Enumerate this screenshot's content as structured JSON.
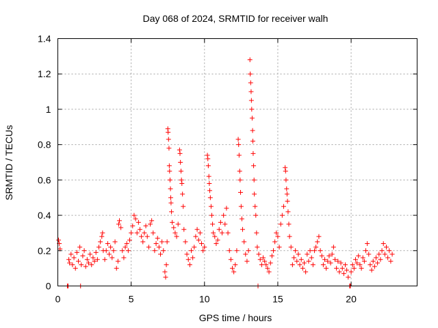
{
  "chart_data": {
    "type": "scatter",
    "title": "Day 068 of 2024, SRMTID for receiver walh",
    "xlabel": "GPS time / hours",
    "ylabel": "SRMTID / TECUs",
    "xlim": [
      0,
      24.5
    ],
    "ylim": [
      0,
      1.4
    ],
    "x_ticks": [
      0,
      5,
      10,
      15,
      20
    ],
    "x_tick_labels": [
      "0",
      "5",
      "10",
      "15",
      "20"
    ],
    "y_ticks": [
      0,
      0.2,
      0.4,
      0.6,
      0.8,
      1.0,
      1.2,
      1.4
    ],
    "y_tick_labels": [
      "0",
      "0.2",
      "0.4",
      "0.6",
      "0.8",
      "1",
      "1.2",
      "1.4"
    ],
    "grid": true,
    "marker": "+",
    "series_color": "#ff0000",
    "series": [
      {
        "name": "SRMTID",
        "points": [
          [
            0.05,
            0.26
          ],
          [
            0.1,
            0.24
          ],
          [
            0.15,
            0.21
          ],
          [
            0.65,
            0.0
          ],
          [
            0.7,
            0.0
          ],
          [
            0.75,
            0.15
          ],
          [
            0.8,
            0.13
          ],
          [
            0.9,
            0.18
          ],
          [
            1.0,
            0.12
          ],
          [
            1.1,
            0.16
          ],
          [
            1.2,
            0.1
          ],
          [
            1.3,
            0.19
          ],
          [
            1.4,
            0.14
          ],
          [
            1.5,
            0.22
          ],
          [
            1.55,
            0.0
          ],
          [
            1.6,
            0.12
          ],
          [
            1.7,
            0.17
          ],
          [
            1.8,
            0.2
          ],
          [
            1.9,
            0.11
          ],
          [
            2.0,
            0.15
          ],
          [
            2.1,
            0.13
          ],
          [
            2.2,
            0.18
          ],
          [
            2.3,
            0.12
          ],
          [
            2.4,
            0.16
          ],
          [
            2.5,
            0.14
          ],
          [
            2.6,
            0.19
          ],
          [
            2.7,
            0.15
          ],
          [
            2.8,
            0.22
          ],
          [
            2.9,
            0.25
          ],
          [
            3.0,
            0.28
          ],
          [
            3.05,
            0.3
          ],
          [
            3.1,
            0.2
          ],
          [
            3.2,
            0.15
          ],
          [
            3.3,
            0.2
          ],
          [
            3.4,
            0.24
          ],
          [
            3.5,
            0.18
          ],
          [
            3.6,
            0.22
          ],
          [
            3.7,
            0.16
          ],
          [
            3.8,
            0.2
          ],
          [
            3.9,
            0.25
          ],
          [
            4.0,
            0.1
          ],
          [
            4.1,
            0.14
          ],
          [
            4.15,
            0.35
          ],
          [
            4.2,
            0.37
          ],
          [
            4.3,
            0.33
          ],
          [
            4.4,
            0.2
          ],
          [
            4.5,
            0.16
          ],
          [
            4.6,
            0.22
          ],
          [
            4.7,
            0.24
          ],
          [
            4.8,
            0.2
          ],
          [
            4.9,
            0.26
          ],
          [
            5.0,
            0.3
          ],
          [
            5.1,
            0.34
          ],
          [
            5.2,
            0.4
          ],
          [
            5.3,
            0.38
          ],
          [
            5.4,
            0.3
          ],
          [
            5.5,
            0.36
          ],
          [
            5.6,
            0.32
          ],
          [
            5.7,
            0.28
          ],
          [
            5.8,
            0.25
          ],
          [
            5.9,
            0.3
          ],
          [
            6.0,
            0.34
          ],
          [
            6.1,
            0.28
          ],
          [
            6.2,
            0.22
          ],
          [
            6.3,
            0.35
          ],
          [
            6.4,
            0.37
          ],
          [
            6.5,
            0.3
          ],
          [
            6.6,
            0.2
          ],
          [
            6.7,
            0.24
          ],
          [
            6.8,
            0.27
          ],
          [
            6.9,
            0.22
          ],
          [
            7.0,
            0.18
          ],
          [
            7.1,
            0.25
          ],
          [
            7.2,
            0.2
          ],
          [
            7.3,
            0.08
          ],
          [
            7.35,
            0.05
          ],
          [
            7.4,
            0.12
          ],
          [
            7.45,
            0.25
          ],
          [
            7.5,
            0.89
          ],
          [
            7.52,
            0.87
          ],
          [
            7.55,
            0.83
          ],
          [
            7.58,
            0.78
          ],
          [
            7.6,
            0.68
          ],
          [
            7.62,
            0.65
          ],
          [
            7.65,
            0.6
          ],
          [
            7.68,
            0.55
          ],
          [
            7.7,
            0.5
          ],
          [
            7.72,
            0.47
          ],
          [
            7.75,
            0.42
          ],
          [
            7.8,
            0.36
          ],
          [
            7.9,
            0.33
          ],
          [
            8.0,
            0.3
          ],
          [
            8.1,
            0.28
          ],
          [
            8.2,
            0.35
          ],
          [
            8.3,
            0.77
          ],
          [
            8.33,
            0.75
          ],
          [
            8.36,
            0.7
          ],
          [
            8.4,
            0.65
          ],
          [
            8.43,
            0.6
          ],
          [
            8.46,
            0.58
          ],
          [
            8.5,
            0.52
          ],
          [
            8.55,
            0.45
          ],
          [
            8.6,
            0.32
          ],
          [
            8.7,
            0.25
          ],
          [
            8.8,
            0.18
          ],
          [
            8.9,
            0.15
          ],
          [
            9.0,
            0.12
          ],
          [
            9.1,
            0.2
          ],
          [
            9.2,
            0.16
          ],
          [
            9.3,
            0.22
          ],
          [
            9.4,
            0.28
          ],
          [
            9.5,
            0.32
          ],
          [
            9.6,
            0.26
          ],
          [
            9.7,
            0.3
          ],
          [
            9.8,
            0.24
          ],
          [
            9.9,
            0.2
          ],
          [
            10.0,
            0.22
          ],
          [
            10.2,
            0.74
          ],
          [
            10.23,
            0.72
          ],
          [
            10.26,
            0.68
          ],
          [
            10.3,
            0.62
          ],
          [
            10.33,
            0.58
          ],
          [
            10.36,
            0.54
          ],
          [
            10.4,
            0.5
          ],
          [
            10.45,
            0.45
          ],
          [
            10.5,
            0.4
          ],
          [
            10.55,
            0.35
          ],
          [
            10.6,
            0.3
          ],
          [
            10.7,
            0.28
          ],
          [
            10.8,
            0.24
          ],
          [
            10.9,
            0.26
          ],
          [
            11.0,
            0.32
          ],
          [
            11.1,
            0.36
          ],
          [
            11.2,
            0.3
          ],
          [
            11.3,
            0.4
          ],
          [
            11.4,
            0.35
          ],
          [
            11.5,
            0.44
          ],
          [
            11.6,
            0.3
          ],
          [
            11.7,
            0.2
          ],
          [
            11.8,
            0.15
          ],
          [
            11.9,
            0.1
          ],
          [
            12.0,
            0.08
          ],
          [
            12.1,
            0.12
          ],
          [
            12.2,
            0.2
          ],
          [
            12.3,
            0.83
          ],
          [
            12.33,
            0.8
          ],
          [
            12.36,
            0.74
          ],
          [
            12.4,
            0.65
          ],
          [
            12.43,
            0.6
          ],
          [
            12.46,
            0.53
          ],
          [
            12.5,
            0.45
          ],
          [
            12.55,
            0.38
          ],
          [
            12.6,
            0.32
          ],
          [
            12.7,
            0.25
          ],
          [
            12.8,
            0.18
          ],
          [
            12.9,
            0.14
          ],
          [
            13.0,
            0.2
          ],
          [
            13.1,
            1.28
          ],
          [
            13.12,
            1.2
          ],
          [
            13.15,
            1.15
          ],
          [
            13.18,
            1.1
          ],
          [
            13.2,
            1.05
          ],
          [
            13.22,
            1.0
          ],
          [
            13.25,
            0.95
          ],
          [
            13.28,
            0.88
          ],
          [
            13.3,
            0.82
          ],
          [
            13.32,
            0.75
          ],
          [
            13.35,
            0.68
          ],
          [
            13.38,
            0.6
          ],
          [
            13.4,
            0.52
          ],
          [
            13.45,
            0.45
          ],
          [
            13.5,
            0.4
          ],
          [
            13.55,
            0.3
          ],
          [
            13.6,
            0.22
          ],
          [
            13.65,
            0.0
          ],
          [
            13.7,
            0.18
          ],
          [
            13.8,
            0.15
          ],
          [
            13.9,
            0.12
          ],
          [
            14.0,
            0.16
          ],
          [
            14.1,
            0.14
          ],
          [
            14.2,
            0.12
          ],
          [
            14.3,
            0.1
          ],
          [
            14.4,
            0.08
          ],
          [
            14.5,
            0.13
          ],
          [
            14.6,
            0.17
          ],
          [
            14.7,
            0.2
          ],
          [
            14.8,
            0.25
          ],
          [
            14.9,
            0.3
          ],
          [
            15.0,
            0.28
          ],
          [
            15.1,
            0.22
          ],
          [
            15.2,
            0.35
          ],
          [
            15.3,
            0.4
          ],
          [
            15.4,
            0.45
          ],
          [
            15.5,
            0.67
          ],
          [
            15.53,
            0.65
          ],
          [
            15.56,
            0.6
          ],
          [
            15.6,
            0.55
          ],
          [
            15.63,
            0.52
          ],
          [
            15.66,
            0.48
          ],
          [
            15.7,
            0.42
          ],
          [
            15.75,
            0.35
          ],
          [
            15.8,
            0.28
          ],
          [
            15.9,
            0.22
          ],
          [
            16.0,
            0.12
          ],
          [
            16.1,
            0.16
          ],
          [
            16.2,
            0.2
          ],
          [
            16.3,
            0.14
          ],
          [
            16.4,
            0.18
          ],
          [
            16.5,
            0.12
          ],
          [
            16.6,
            0.15
          ],
          [
            16.7,
            0.1
          ],
          [
            16.8,
            0.13
          ],
          [
            16.9,
            0.08
          ],
          [
            17.0,
            0.18
          ],
          [
            17.1,
            0.14
          ],
          [
            17.2,
            0.2
          ],
          [
            17.3,
            0.16
          ],
          [
            17.4,
            0.12
          ],
          [
            17.5,
            0.2
          ],
          [
            17.6,
            0.22
          ],
          [
            17.7,
            0.25
          ],
          [
            17.8,
            0.28
          ],
          [
            17.9,
            0.2
          ],
          [
            18.0,
            0.17
          ],
          [
            18.1,
            0.12
          ],
          [
            18.2,
            0.15
          ],
          [
            18.3,
            0.1
          ],
          [
            18.4,
            0.14
          ],
          [
            18.5,
            0.17
          ],
          [
            18.6,
            0.13
          ],
          [
            18.7,
            0.18
          ],
          [
            18.8,
            0.22
          ],
          [
            18.9,
            0.15
          ],
          [
            19.0,
            0.1
          ],
          [
            19.1,
            0.14
          ],
          [
            19.2,
            0.08
          ],
          [
            19.3,
            0.13
          ],
          [
            19.4,
            0.1
          ],
          [
            19.5,
            0.07
          ],
          [
            19.6,
            0.12
          ],
          [
            19.7,
            0.09
          ],
          [
            19.8,
            0.05
          ],
          [
            19.9,
            0.0
          ],
          [
            19.95,
            0.0
          ],
          [
            20.0,
            0.08
          ],
          [
            20.1,
            0.12
          ],
          [
            20.2,
            0.1
          ],
          [
            20.3,
            0.15
          ],
          [
            20.4,
            0.13
          ],
          [
            20.5,
            0.17
          ],
          [
            20.6,
            0.12
          ],
          [
            20.7,
            0.1
          ],
          [
            20.8,
            0.16
          ],
          [
            20.9,
            0.14
          ],
          [
            21.0,
            0.2
          ],
          [
            21.1,
            0.24
          ],
          [
            21.2,
            0.18
          ],
          [
            21.3,
            0.12
          ],
          [
            21.4,
            0.09
          ],
          [
            21.5,
            0.14
          ],
          [
            21.6,
            0.11
          ],
          [
            21.7,
            0.16
          ],
          [
            21.8,
            0.13
          ],
          [
            21.9,
            0.18
          ],
          [
            22.0,
            0.15
          ],
          [
            22.1,
            0.2
          ],
          [
            22.2,
            0.24
          ],
          [
            22.3,
            0.18
          ],
          [
            22.4,
            0.22
          ],
          [
            22.5,
            0.16
          ],
          [
            22.6,
            0.2
          ],
          [
            22.7,
            0.14
          ],
          [
            22.8,
            0.18
          ]
        ]
      }
    ]
  }
}
